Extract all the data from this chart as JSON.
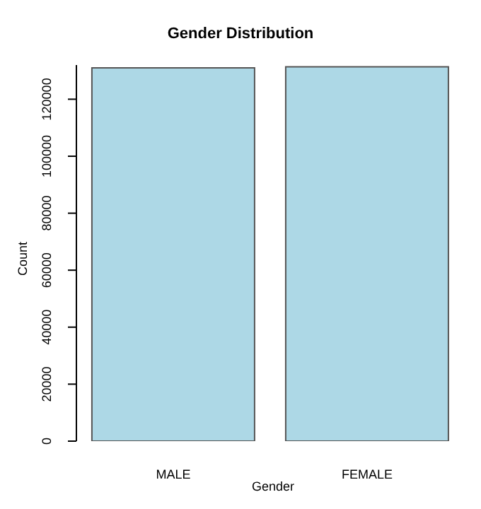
{
  "chart_data": {
    "type": "bar",
    "title": "Gender Distribution",
    "xlabel": "Gender",
    "ylabel": "Count",
    "categories": [
      "MALE",
      "FEMALE"
    ],
    "values": [
      131000,
      131400
    ],
    "color": "#add8e6",
    "ylim": [
      0,
      132000
    ],
    "yticks": [
      0,
      20000,
      40000,
      60000,
      80000,
      100000,
      120000
    ],
    "grid": false
  }
}
